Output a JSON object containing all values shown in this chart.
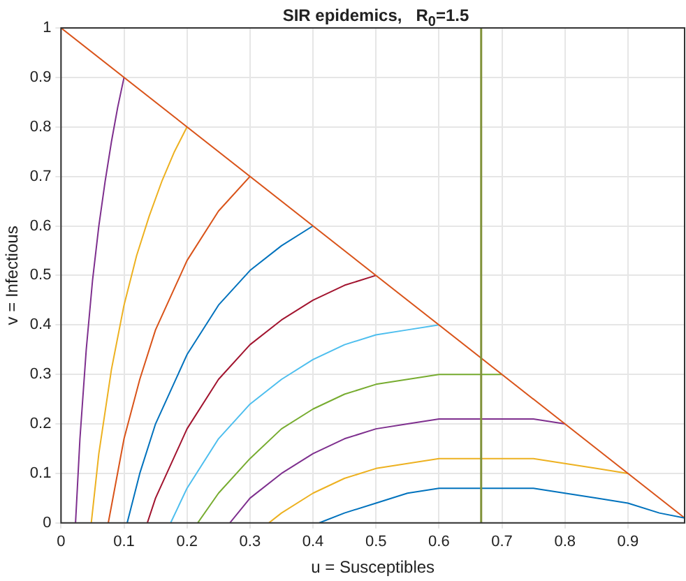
{
  "chart_data": {
    "type": "line",
    "title": "SIR epidemics,   R$_{0}$=1.5",
    "xlabel": "u = Susceptibles",
    "ylabel": "v = Infectious",
    "xlim": [
      0,
      0.99
    ],
    "ylim": [
      0,
      1
    ],
    "xticks": [
      0,
      0.1,
      0.2,
      0.3,
      0.4,
      0.5,
      0.6,
      0.7,
      0.8,
      0.9
    ],
    "yticks": [
      0,
      0.1,
      0.2,
      0.3,
      0.4,
      0.5,
      0.6,
      0.7,
      0.8,
      0.9,
      1
    ],
    "grid": true,
    "legend": false,
    "marker": "none",
    "line_style": "solid",
    "ref_lines": [
      {
        "axis": "x",
        "value": 0.667,
        "color": "#80923a"
      }
    ],
    "series": [
      {
        "color": "#0072bd",
        "x": [
          0.41,
          0.45,
          0.5,
          0.55,
          0.6,
          0.667,
          0.75,
          0.8,
          0.85,
          0.9,
          0.95,
          0.99
        ],
        "values": [
          0,
          0.02,
          0.04,
          0.06,
          0.07,
          0.07,
          0.07,
          0.06,
          0.05,
          0.04,
          0.02,
          0.01
        ]
      },
      {
        "color": "#d95319",
        "x": [
          0,
          0.99
        ],
        "values": [
          1,
          0.01
        ]
      },
      {
        "color": "#edb120",
        "x": [
          0.33,
          0.35,
          0.4,
          0.45,
          0.5,
          0.55,
          0.6,
          0.667,
          0.75,
          0.8,
          0.85,
          0.9
        ],
        "values": [
          0,
          0.02,
          0.06,
          0.09,
          0.11,
          0.12,
          0.13,
          0.13,
          0.13,
          0.12,
          0.11,
          0.1
        ]
      },
      {
        "color": "#7e2f8e",
        "x": [
          0.268,
          0.3,
          0.35,
          0.4,
          0.45,
          0.5,
          0.55,
          0.6,
          0.667,
          0.7,
          0.75,
          0.8
        ],
        "values": [
          0,
          0.05,
          0.1,
          0.14,
          0.17,
          0.19,
          0.2,
          0.21,
          0.21,
          0.21,
          0.21,
          0.2
        ]
      },
      {
        "color": "#77ac30",
        "x": [
          0.217,
          0.25,
          0.3,
          0.35,
          0.4,
          0.45,
          0.5,
          0.55,
          0.6,
          0.667,
          0.7
        ],
        "values": [
          0,
          0.06,
          0.13,
          0.19,
          0.23,
          0.26,
          0.28,
          0.29,
          0.3,
          0.3,
          0.3
        ]
      },
      {
        "color": "#4dbeee",
        "x": [
          0.174,
          0.2,
          0.25,
          0.3,
          0.35,
          0.4,
          0.45,
          0.5,
          0.55,
          0.6
        ],
        "values": [
          0,
          0.07,
          0.17,
          0.24,
          0.29,
          0.33,
          0.36,
          0.38,
          0.39,
          0.4
        ]
      },
      {
        "color": "#a2142f",
        "x": [
          0.137,
          0.15,
          0.2,
          0.25,
          0.3,
          0.35,
          0.4,
          0.45,
          0.5
        ],
        "values": [
          0,
          0.05,
          0.19,
          0.29,
          0.36,
          0.41,
          0.45,
          0.48,
          0.5
        ]
      },
      {
        "color": "#0072bd",
        "x": [
          0.105,
          0.125,
          0.15,
          0.2,
          0.25,
          0.3,
          0.35,
          0.4
        ],
        "values": [
          0,
          0.1,
          0.2,
          0.34,
          0.44,
          0.51,
          0.56,
          0.6
        ]
      },
      {
        "color": "#d95319",
        "x": [
          0.075,
          0.1,
          0.125,
          0.15,
          0.2,
          0.25,
          0.3
        ],
        "values": [
          0,
          0.17,
          0.29,
          0.39,
          0.53,
          0.63,
          0.7
        ]
      },
      {
        "color": "#edb120",
        "x": [
          0.048,
          0.06,
          0.08,
          0.1,
          0.12,
          0.14,
          0.16,
          0.18,
          0.2
        ],
        "values": [
          0,
          0.14,
          0.31,
          0.44,
          0.54,
          0.62,
          0.69,
          0.75,
          0.8
        ]
      },
      {
        "color": "#7e2f8e",
        "x": [
          0.023,
          0.03,
          0.04,
          0.05,
          0.06,
          0.07,
          0.08,
          0.09,
          0.1
        ],
        "values": [
          0,
          0.17,
          0.35,
          0.49,
          0.6,
          0.69,
          0.77,
          0.84,
          0.9
        ]
      }
    ]
  }
}
